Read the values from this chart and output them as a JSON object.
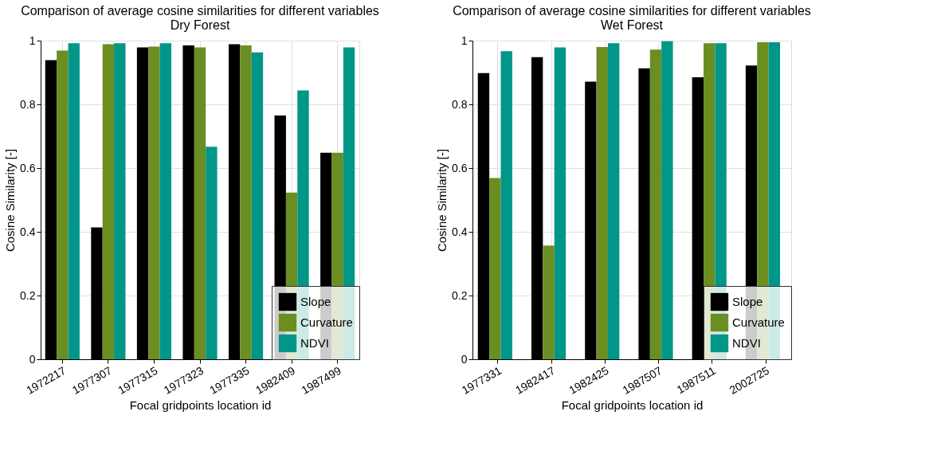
{
  "chart_data": [
    {
      "type": "bar",
      "title": "Comparison of average cosine similarities for different variables",
      "subtitle": "Dry Forest",
      "xlabel": "Focal gridpoints location id",
      "ylabel": "Cosine Similarity [-]",
      "categories": [
        "1972217",
        "1977307",
        "1977315",
        "1977323",
        "1977335",
        "1982409",
        "1987499"
      ],
      "series": [
        {
          "name": "Slope",
          "color": "#000000",
          "values": [
            0.939,
            0.414,
            0.979,
            0.985,
            0.989,
            0.765,
            0.648
          ]
        },
        {
          "name": "Curvature",
          "color": "#6b8e23",
          "values": [
            0.969,
            0.989,
            0.981,
            0.979,
            0.985,
            0.523,
            0.648
          ]
        },
        {
          "name": "NDVI",
          "color": "#009688",
          "values": [
            0.992,
            0.992,
            0.992,
            0.667,
            0.963,
            0.844,
            0.979
          ]
        }
      ],
      "ylim": [
        0,
        1
      ],
      "yticks": [
        0,
        0.2,
        0.4,
        0.6,
        0.8,
        1
      ],
      "grid": true,
      "legend": "bottom right"
    },
    {
      "type": "bar",
      "title": "Comparison of average cosine similarities for different variables",
      "subtitle": "Wet Forest",
      "xlabel": "Focal gridpoints location id",
      "ylabel": "Cosine Similarity [-]",
      "categories": [
        "1977331",
        "1982417",
        "1982425",
        "1987507",
        "1987511",
        "2002725"
      ],
      "series": [
        {
          "name": "Slope",
          "color": "#000000",
          "values": [
            0.898,
            0.948,
            0.871,
            0.913,
            0.885,
            0.922
          ]
        },
        {
          "name": "Curvature",
          "color": "#6b8e23",
          "values": [
            0.569,
            0.357,
            0.98,
            0.972,
            0.992,
            0.995
          ]
        },
        {
          "name": "NDVI",
          "color": "#009688",
          "values": [
            0.967,
            0.979,
            0.992,
            0.998,
            0.992,
            0.995
          ]
        }
      ],
      "ylim": [
        0,
        1
      ],
      "yticks": [
        0,
        0.2,
        0.4,
        0.6,
        0.8,
        1
      ],
      "grid": true,
      "legend": "bottom right"
    }
  ]
}
